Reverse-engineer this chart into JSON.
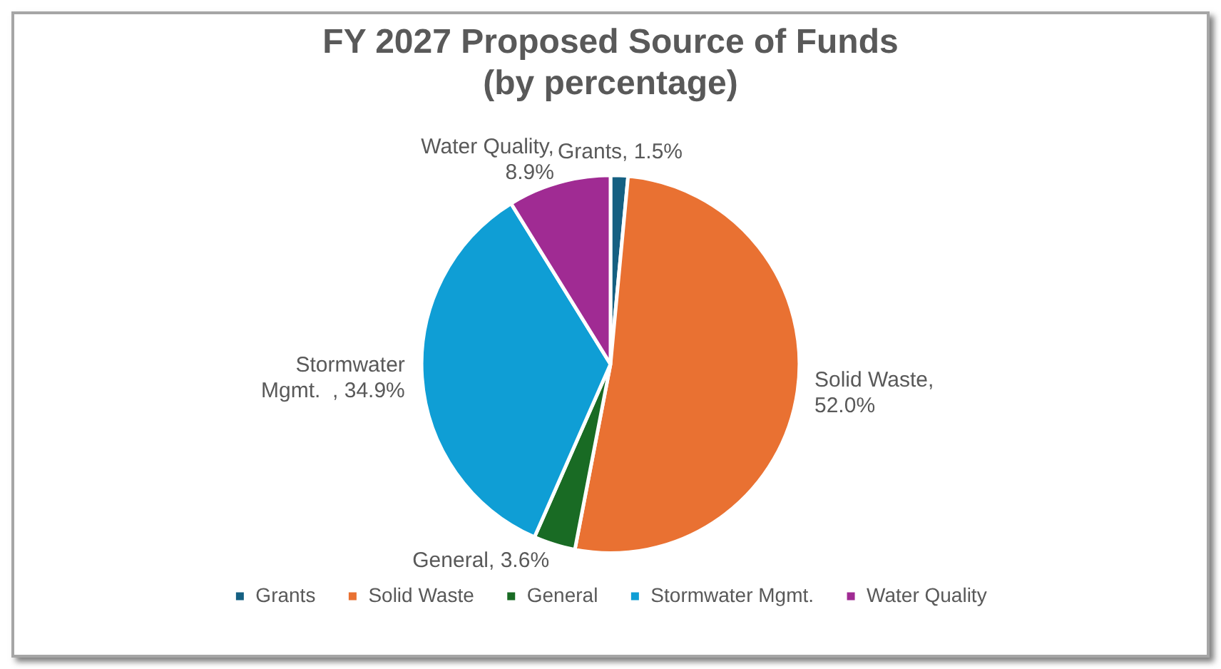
{
  "chart_data": {
    "type": "pie",
    "title": "FY 2027 Proposed Source of Funds",
    "subtitle": "(by percentage)",
    "categories": [
      "Grants",
      "Solid Waste",
      "General",
      "Stormwater Mgmt.",
      "Water Quality"
    ],
    "values": [
      1.5,
      52.0,
      3.6,
      34.9,
      8.9
    ],
    "colors": [
      "#156082",
      "#e97132",
      "#196b24",
      "#0f9ed5",
      "#a02b93"
    ],
    "value_labels": [
      "Grants, 1.5%",
      "Solid Waste, 52.0%",
      "General, 3.6%",
      "Stormwater Mgmt.  , 34.9%",
      "Water Quality, 8.9%"
    ],
    "legend": "bottom"
  }
}
